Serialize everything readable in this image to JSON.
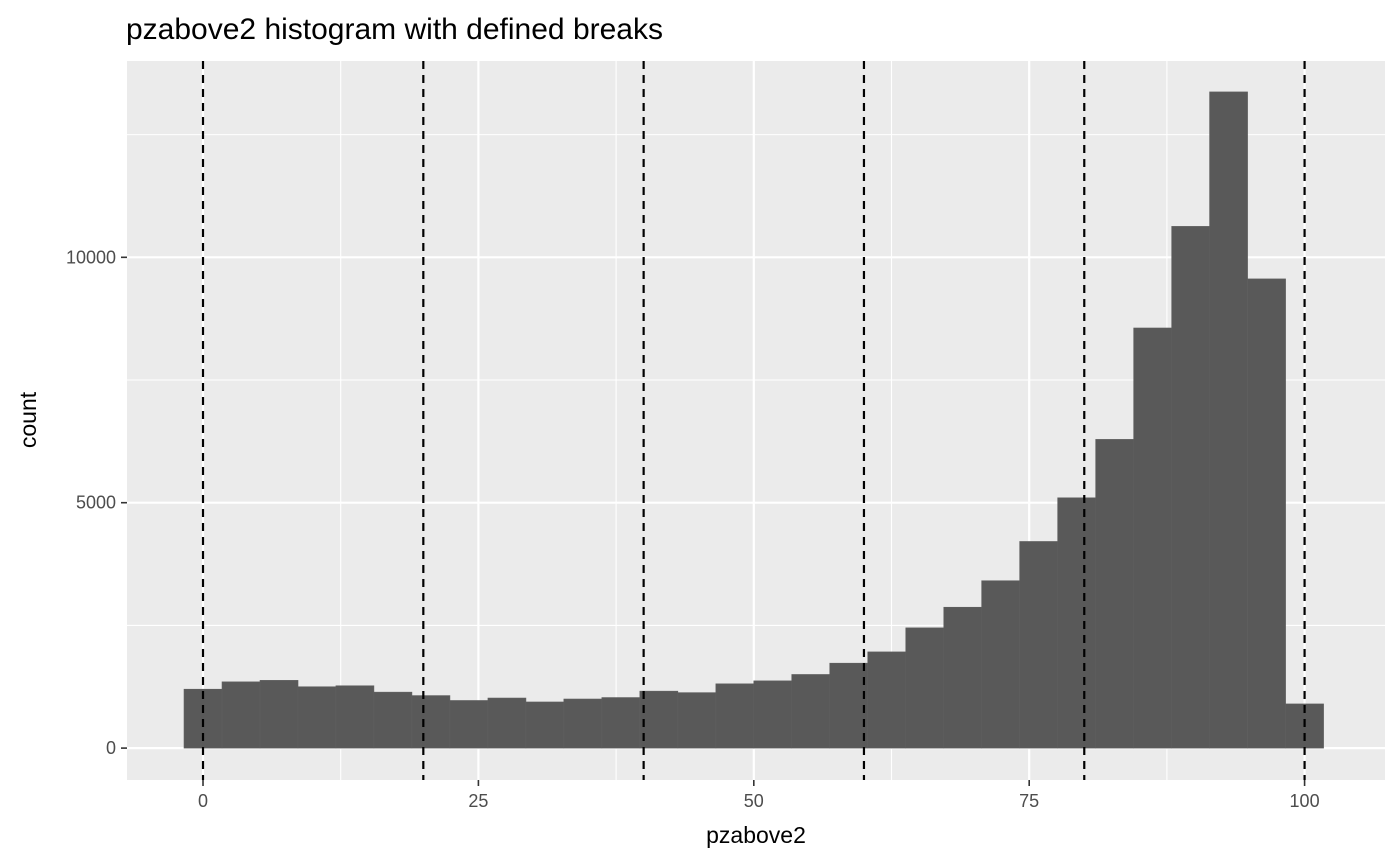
{
  "chart_data": {
    "type": "bar",
    "title": "pzabove2 histogram with defined breaks",
    "xlabel": "pzabove2",
    "ylabel": "count",
    "xlim": [
      -6.9,
      107.3
    ],
    "ylim": [
      -650,
      14000
    ],
    "x_ticks": [
      0,
      25,
      50,
      75,
      100
    ],
    "x_minor_ticks": [
      12.5,
      37.5,
      62.5,
      87.5
    ],
    "y_ticks": [
      0,
      5000,
      10000
    ],
    "y_minor_ticks": [
      2500,
      7500,
      12500
    ],
    "bin_width": 3.448,
    "bins": [
      {
        "x": 0.0,
        "count": 1200
      },
      {
        "x": 3.45,
        "count": 1350
      },
      {
        "x": 6.9,
        "count": 1380
      },
      {
        "x": 10.34,
        "count": 1250
      },
      {
        "x": 13.79,
        "count": 1270
      },
      {
        "x": 17.24,
        "count": 1140
      },
      {
        "x": 20.69,
        "count": 1070
      },
      {
        "x": 24.14,
        "count": 970
      },
      {
        "x": 27.59,
        "count": 1020
      },
      {
        "x": 31.03,
        "count": 940
      },
      {
        "x": 34.48,
        "count": 1000
      },
      {
        "x": 37.93,
        "count": 1030
      },
      {
        "x": 41.38,
        "count": 1160
      },
      {
        "x": 44.83,
        "count": 1130
      },
      {
        "x": 48.28,
        "count": 1310
      },
      {
        "x": 51.72,
        "count": 1370
      },
      {
        "x": 55.17,
        "count": 1500
      },
      {
        "x": 58.62,
        "count": 1730
      },
      {
        "x": 62.07,
        "count": 1960
      },
      {
        "x": 65.52,
        "count": 2450
      },
      {
        "x": 68.97,
        "count": 2870
      },
      {
        "x": 72.41,
        "count": 3410
      },
      {
        "x": 75.86,
        "count": 4210
      },
      {
        "x": 79.31,
        "count": 5100
      },
      {
        "x": 82.76,
        "count": 6290
      },
      {
        "x": 86.21,
        "count": 8560
      },
      {
        "x": 89.66,
        "count": 10630
      },
      {
        "x": 93.1,
        "count": 13370
      },
      {
        "x": 96.55,
        "count": 9560
      },
      {
        "x": 100.0,
        "count": 900
      }
    ],
    "vlines": [
      0,
      20,
      40,
      60,
      80,
      100
    ],
    "colors": {
      "panel": "#ebebeb",
      "grid": "#ffffff",
      "bar": "#595959",
      "vline": "#000000",
      "tick": "#333333"
    },
    "grid": true,
    "legend": "none"
  }
}
